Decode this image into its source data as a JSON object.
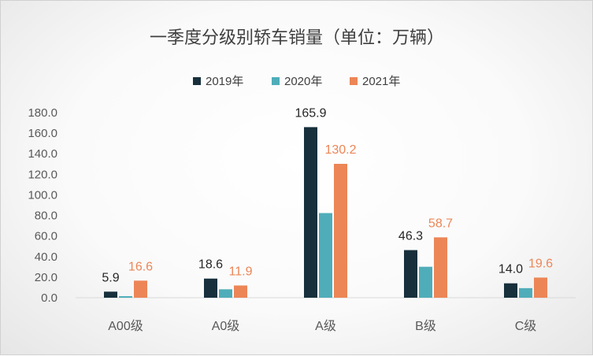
{
  "chart_data": {
    "type": "bar",
    "title": "一季度分级别轿车销量（单位：万辆）",
    "categories": [
      "A00级",
      "A0级",
      "A级",
      "B级",
      "C级"
    ],
    "series": [
      {
        "name": "2019年",
        "color": "#17303c",
        "values": [
          5.9,
          18.6,
          165.9,
          46.3,
          14.0
        ],
        "labeled": true
      },
      {
        "name": "2020年",
        "color": "#4fadb9",
        "values": [
          1.5,
          8.2,
          82.3,
          30.1,
          9.3
        ],
        "labeled": false
      },
      {
        "name": "2021年",
        "color": "#ec8657",
        "values": [
          16.6,
          11.9,
          130.2,
          58.7,
          19.6
        ],
        "labeled": true
      }
    ],
    "data_labels": {
      "2019年": [
        "5.9",
        "18.6",
        "165.9",
        "46.3",
        "14.0"
      ],
      "2021年": [
        "16.6",
        "11.9",
        "130.2",
        "58.7",
        "19.6"
      ]
    },
    "y_ticks": [
      "0.0",
      "20.0",
      "40.0",
      "60.0",
      "80.0",
      "100.0",
      "120.0",
      "140.0",
      "160.0",
      "180.0"
    ],
    "ylim": [
      0,
      180
    ],
    "xlabel": "",
    "ylabel": "",
    "legend_position": "top",
    "grid": false
  }
}
